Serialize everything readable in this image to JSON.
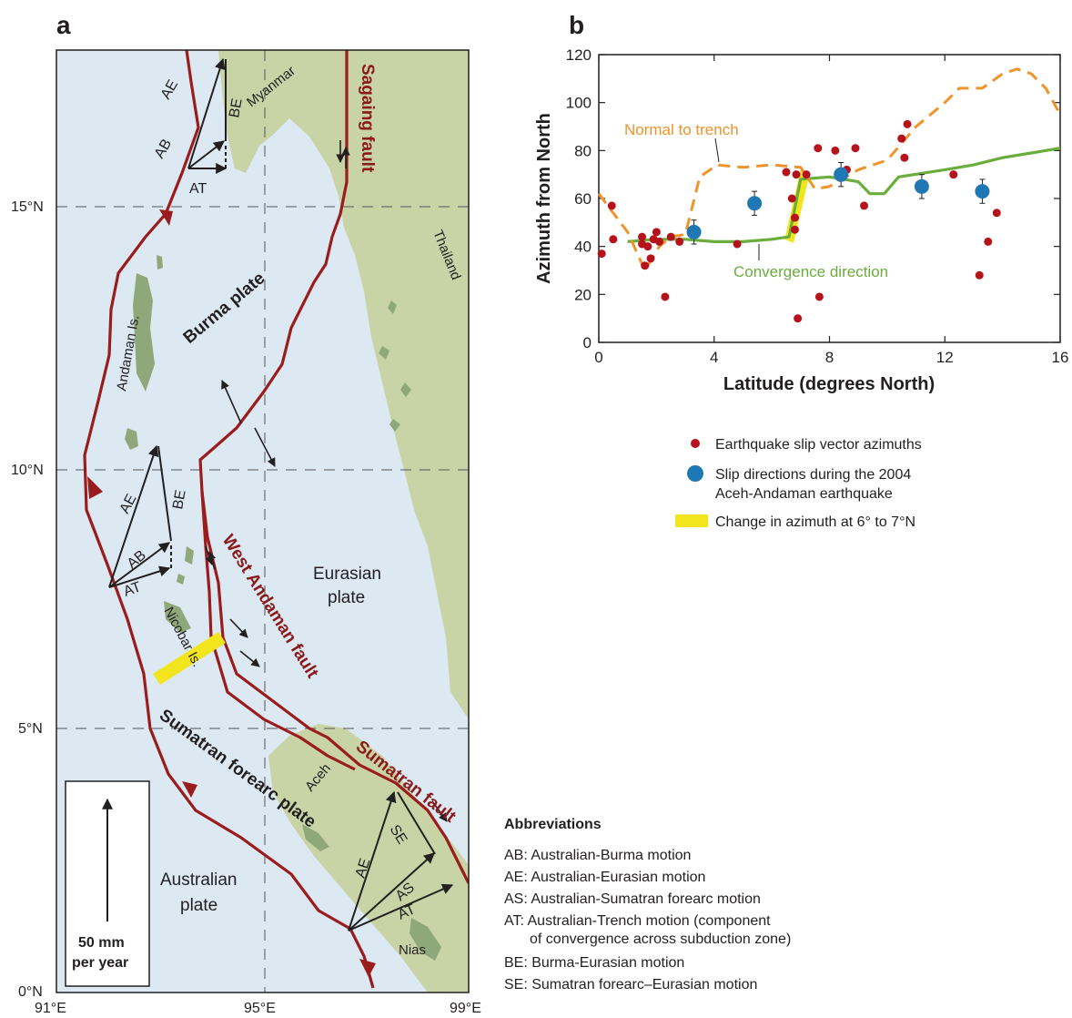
{
  "panel_a": {
    "label": "a",
    "lat_ticks": [
      "15°N",
      "10°N",
      "5°N",
      "0°N"
    ],
    "lon_ticks": [
      "91°E",
      "95°E",
      "99°E"
    ],
    "places": {
      "myanmar": "Myanmar",
      "thailand": "Thailand",
      "andaman": "Andaman Is.",
      "nicobar": "Nicobar Is.",
      "aceh": "Aceh",
      "nias": "Nias"
    },
    "plates": {
      "burma": "Burma plate",
      "eurasian_1": "Eurasian",
      "eurasian_2": "plate",
      "australian_1": "Australian",
      "australian_2": "plate",
      "sumatran_forearc": "Sumatran forearc plate"
    },
    "faults": {
      "sagaing": "Sagaing fault",
      "west_andaman": "West Andaman fault",
      "sumatran": "Sumatran fault"
    },
    "vectors": {
      "ae": "AE",
      "ab": "AB",
      "at": "AT",
      "be": "BE",
      "as": "AS",
      "se": "SE"
    },
    "scale_line1": "50 mm",
    "scale_line2": "per year",
    "colors": {
      "sea": "#dce9f3",
      "land": "#c8d3a6",
      "island": "#8fa87a",
      "fault": "#9b1c1c",
      "highlight": "#f2e51d"
    }
  },
  "panel_b": {
    "label": "b",
    "annotations": {
      "normal_to_trench": "Normal to trench",
      "convergence": "Convergence direction"
    },
    "legend": [
      {
        "label": "Earthquake slip vector azimuths",
        "color": "#b5121b",
        "marker": "small-dot"
      },
      {
        "label": "Slip directions during the 2004",
        "label2": "Aceh-Andaman earthquake",
        "color": "#1f78b4",
        "marker": "big-dot"
      },
      {
        "label": "Change in azimuth at 6° to 7°N",
        "color": "#f2e51d",
        "marker": "bar"
      }
    ]
  },
  "chart_data": {
    "type": "scatter",
    "title": "",
    "xlabel": "Latitude (degrees North)",
    "ylabel": "Azimuth from North",
    "xlim": [
      0,
      16
    ],
    "ylim": [
      0,
      120
    ],
    "x_ticks": [
      "0",
      "4",
      "8",
      "12",
      "16"
    ],
    "y_ticks": [
      "0",
      "20",
      "40",
      "60",
      "80",
      "100",
      "120"
    ],
    "series": [
      {
        "name": "Earthquake slip vector azimuths",
        "type": "scatter",
        "color": "#b5121b",
        "points": [
          [
            0.1,
            37
          ],
          [
            0.45,
            57
          ],
          [
            0.5,
            43
          ],
          [
            1.5,
            44
          ],
          [
            1.5,
            41
          ],
          [
            1.6,
            32
          ],
          [
            1.7,
            40
          ],
          [
            1.8,
            35
          ],
          [
            1.9,
            43
          ],
          [
            2.0,
            46
          ],
          [
            2.1,
            42
          ],
          [
            2.3,
            19
          ],
          [
            2.5,
            44
          ],
          [
            2.8,
            42
          ],
          [
            4.8,
            41
          ],
          [
            6.5,
            71
          ],
          [
            6.7,
            60
          ],
          [
            6.8,
            47
          ],
          [
            6.8,
            52
          ],
          [
            6.85,
            70
          ],
          [
            6.9,
            10
          ],
          [
            7.2,
            70
          ],
          [
            7.6,
            81
          ],
          [
            7.65,
            19
          ],
          [
            8.2,
            80
          ],
          [
            8.6,
            72
          ],
          [
            8.9,
            81
          ],
          [
            9.2,
            57
          ],
          [
            10.5,
            85
          ],
          [
            10.6,
            77
          ],
          [
            10.7,
            91
          ],
          [
            12.3,
            70
          ],
          [
            13.2,
            28
          ],
          [
            13.5,
            42
          ],
          [
            13.8,
            54
          ]
        ]
      },
      {
        "name": "Slip directions during the 2004 Aceh-Andaman earthquake",
        "type": "scatter-errorbar",
        "color": "#1f78b4",
        "points": [
          {
            "x": 3.3,
            "y": 46,
            "err": 5
          },
          {
            "x": 5.4,
            "y": 58,
            "err": 5
          },
          {
            "x": 8.4,
            "y": 70,
            "err": 5
          },
          {
            "x": 11.2,
            "y": 65,
            "err": 5
          },
          {
            "x": 13.3,
            "y": 63,
            "err": 5
          }
        ]
      },
      {
        "name": "Convergence direction",
        "type": "line",
        "color": "#6aad3d",
        "points": [
          [
            1.0,
            42
          ],
          [
            2.0,
            43
          ],
          [
            3.0,
            43
          ],
          [
            4.0,
            42
          ],
          [
            5.0,
            42
          ],
          [
            6.0,
            43
          ],
          [
            6.6,
            44
          ],
          [
            7.0,
            68
          ],
          [
            8.0,
            69
          ],
          [
            9.0,
            67
          ],
          [
            9.4,
            62
          ],
          [
            9.9,
            62
          ],
          [
            10.4,
            69
          ],
          [
            12.0,
            72
          ],
          [
            13.0,
            74
          ],
          [
            14.0,
            77
          ],
          [
            15.0,
            79
          ],
          [
            16.0,
            81
          ]
        ]
      },
      {
        "name": "Normal to trench",
        "type": "dashed-line",
        "color": "#f0932b",
        "points": [
          [
            0.0,
            62
          ],
          [
            0.5,
            54
          ],
          [
            1.0,
            46
          ],
          [
            1.6,
            30
          ],
          [
            2.1,
            40
          ],
          [
            2.5,
            44
          ],
          [
            3.0,
            45
          ],
          [
            3.5,
            69
          ],
          [
            4.1,
            74
          ],
          [
            5.0,
            73
          ],
          [
            6.0,
            74
          ],
          [
            7.0,
            73
          ],
          [
            7.5,
            64
          ],
          [
            8.0,
            65
          ],
          [
            9.0,
            72
          ],
          [
            10.0,
            76
          ],
          [
            11.0,
            90
          ],
          [
            12.0,
            100
          ],
          [
            12.5,
            106
          ],
          [
            13.3,
            106
          ],
          [
            14.0,
            112
          ],
          [
            14.5,
            114
          ],
          [
            15.0,
            112
          ],
          [
            15.5,
            106
          ],
          [
            16.0,
            95
          ]
        ]
      }
    ],
    "highlight_band": {
      "x_from": 6.6,
      "x_to": 7.1,
      "y_from": 43,
      "y_to": 70,
      "color": "#f2e51d"
    }
  },
  "abbreviations": {
    "title": "Abbreviations",
    "items": [
      "AB: Australian-Burma motion",
      "AE: Australian-Eurasian motion",
      "AS: Australian-Sumatran forearc motion",
      "AT: Australian-Trench motion (component",
      "of convergence across subduction zone)",
      "BE: Burma-Eurasian motion",
      "SE: Sumatran forearc–Eurasian motion"
    ]
  }
}
